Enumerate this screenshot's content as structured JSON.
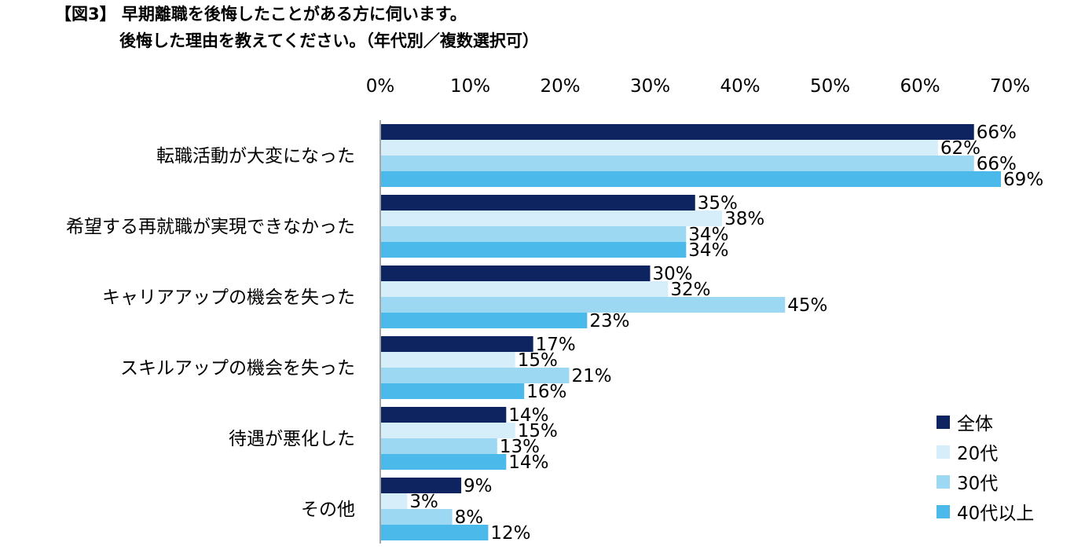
{
  "header": {
    "line1": "【図3】 早期離職を後悔したことがある方に伺います。",
    "line2": "後悔した理由を教えてください。（年代別／複数選択可）"
  },
  "colors": {
    "all": "#0d2461",
    "age20": "#d6eefa",
    "age30": "#9dd8f3",
    "age40plus": "#4bb9ea",
    "axis": "#a6a6a6"
  },
  "chart_data": {
    "type": "bar",
    "orientation": "horizontal",
    "xlim": [
      0,
      70
    ],
    "x_ticks": [
      "0%",
      "10%",
      "20%",
      "30%",
      "40%",
      "50%",
      "60%",
      "70%"
    ],
    "tick_values": [
      0,
      10,
      20,
      30,
      40,
      50,
      60,
      70
    ],
    "categories": [
      "転職活動が大変になった",
      "希望する再就職が実現できなかった",
      "キャリアアップの機会を失った",
      "スキルアップの機会を失った",
      "待遇が悪化した",
      "その他"
    ],
    "series": [
      {
        "name": "全体",
        "values": [
          66,
          35,
          30,
          17,
          14,
          9
        ]
      },
      {
        "name": "20代",
        "values": [
          62,
          38,
          32,
          15,
          15,
          3
        ]
      },
      {
        "name": "30代",
        "values": [
          66,
          34,
          45,
          21,
          13,
          8
        ]
      },
      {
        "name": "40代以上",
        "values": [
          69,
          34,
          23,
          16,
          14,
          12
        ]
      }
    ],
    "value_suffix": "%",
    "legend_position": "bottom-right",
    "grid": false
  },
  "legend": [
    {
      "label": "全体",
      "color": "#0d2461"
    },
    {
      "label": "20代",
      "color": "#d6eefa"
    },
    {
      "label": "30代",
      "color": "#9dd8f3"
    },
    {
      "label": "40代以上",
      "color": "#4bb9ea"
    }
  ]
}
